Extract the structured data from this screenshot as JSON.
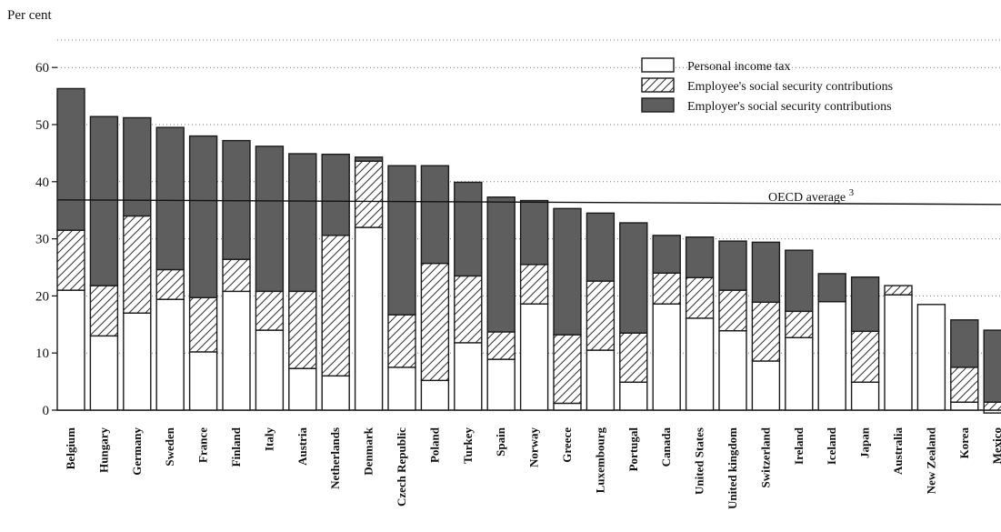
{
  "chart_data": {
    "type": "bar",
    "stacked": true,
    "ylabel": "Per cent",
    "ylim": [
      0,
      60
    ],
    "yticks": [
      0,
      10,
      20,
      30,
      40,
      50,
      60
    ],
    "grid": "dotted horizontal",
    "legend_position": "top-right",
    "categories": [
      "Belgium",
      "Hungary",
      "Germany",
      "Sweden",
      "France",
      "Finland",
      "Italy",
      "Austria",
      "Netherlands",
      "Denmark",
      "Czech Republic",
      "Poland",
      "Turkey",
      "Spain",
      "Norway",
      "Greece",
      "Luxembourg",
      "Portugal",
      "Canada",
      "United States",
      "United kingdom",
      "Switzerland",
      "Ireland",
      "Iceland",
      "Japan",
      "Australia",
      "New Zealand",
      "Korea",
      "Mexico"
    ],
    "series": [
      {
        "name": "Personal income tax",
        "pattern": "white",
        "values": [
          21,
          13,
          17,
          19.4,
          10.2,
          20.8,
          14,
          7.3,
          6,
          32,
          7.5,
          5.2,
          11.8,
          8.9,
          18.6,
          1.2,
          10.5,
          4.9,
          18.6,
          16.1,
          13.9,
          8.6,
          12.7,
          19,
          4.9,
          20.2,
          18.5,
          1.4,
          -0.5
        ]
      },
      {
        "name": "Employee's social security contributions",
        "pattern": "hatched",
        "values": [
          10.5,
          8.8,
          17,
          5.2,
          9.5,
          5.6,
          6.8,
          13.5,
          24.6,
          11.6,
          9.2,
          20.5,
          11.7,
          4.8,
          6.9,
          12,
          12.1,
          8.6,
          5.4,
          7.1,
          7.1,
          10.3,
          4.6,
          0,
          8.9,
          1.6,
          0,
          6.1,
          1.4
        ]
      },
      {
        "name": "Employer's social security contributions",
        "pattern": "dark",
        "values": [
          24.8,
          29.6,
          17.2,
          24.9,
          28.3,
          20.8,
          25.4,
          24.1,
          14.2,
          0.7,
          26.1,
          17.1,
          16.4,
          23.6,
          11.2,
          22.1,
          11.9,
          19.3,
          6.6,
          7.1,
          8.6,
          10.5,
          10.7,
          4.9,
          9.5,
          0,
          0,
          8.3,
          12.6
        ]
      }
    ],
    "reference_line": {
      "label": "OECD average",
      "superscript": "3",
      "value": 36.5
    }
  },
  "colors": {
    "dark_fill": "#5e5e5e",
    "outline": "#1a1a1a",
    "hatch": "#333333"
  }
}
